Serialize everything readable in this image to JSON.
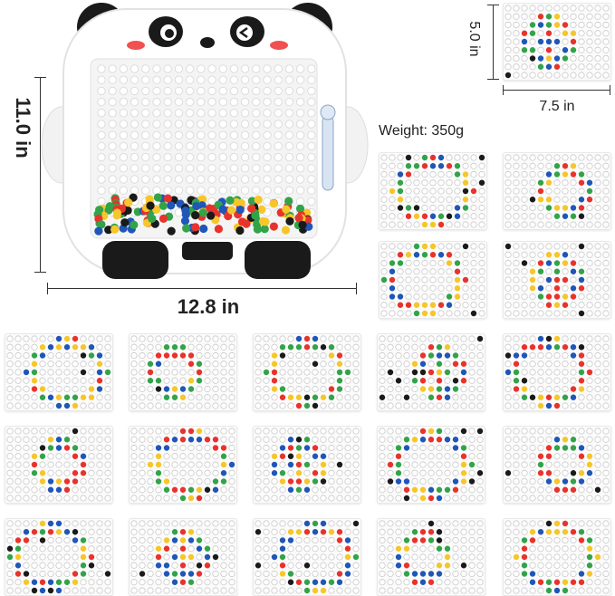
{
  "dimensions": {
    "height": "11.0 in",
    "width": "12.8 in",
    "card_height": "5.0 in",
    "card_width": "7.5 in",
    "weight": "Weight: 350g"
  },
  "colors": {
    "red": "#e8332c",
    "yellow": "#f6c62a",
    "green": "#33a34a",
    "blue": "#1f56b8",
    "black": "#1a1a1a",
    "empty": "#ffffff",
    "board": "#ffffff",
    "panda_ears": "#1a1a1a"
  },
  "illustration": {
    "subject": "panda-magnetic-drawing-board",
    "pattern_cards": 21
  }
}
